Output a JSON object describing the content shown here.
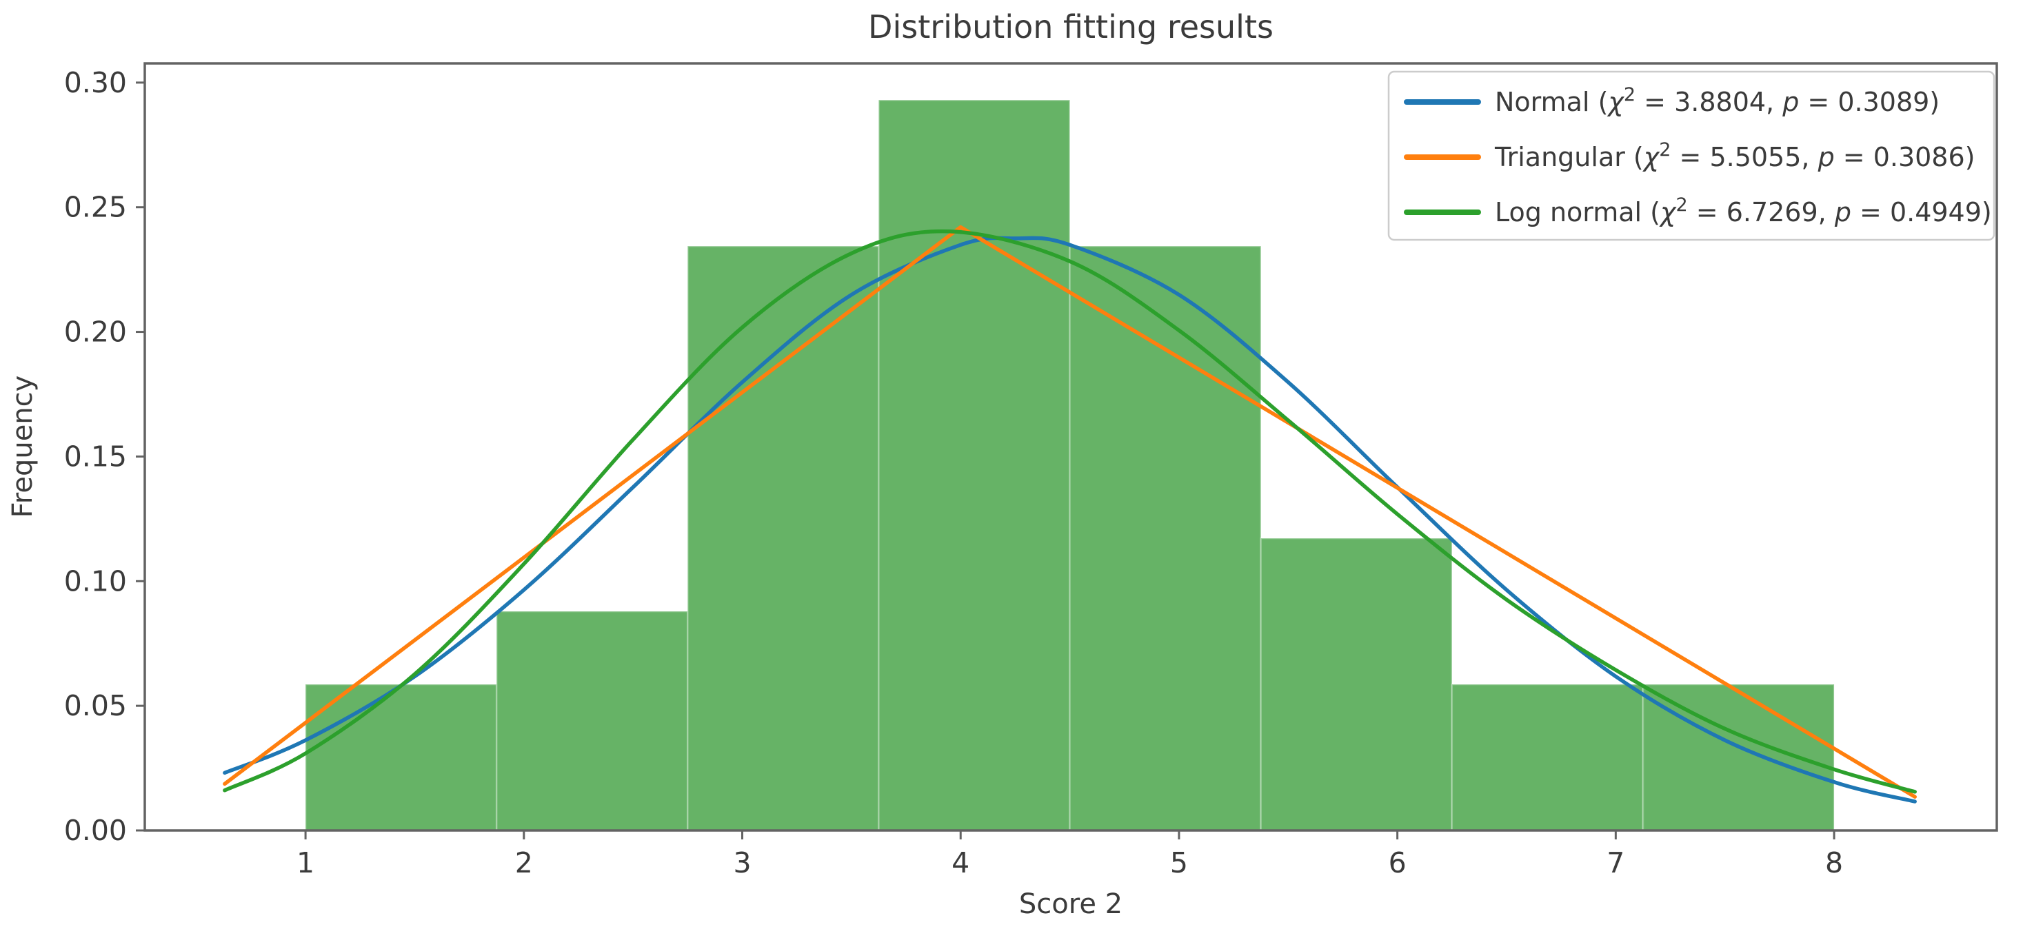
{
  "figure": {
    "background": "#ffffff",
    "text_color": "#3b3b3b",
    "spine_color": "#636363"
  },
  "chart_data": {
    "type": "histogram_with_fit_lines",
    "title": "Distribution fitting results",
    "xlabel": "Score 2",
    "ylabel": "Frequency",
    "xlim": [
      0.264,
      8.745
    ],
    "ylim": [
      0,
      0.3077
    ],
    "grid": false,
    "x_tick_values": [
      1,
      2,
      3,
      4,
      5,
      6,
      7,
      8
    ],
    "x_tick_labels": [
      "1",
      "2",
      "3",
      "4",
      "5",
      "6",
      "7",
      "8"
    ],
    "y_tick_values": [
      0,
      0.05,
      0.1,
      0.15,
      0.2,
      0.25,
      0.3
    ],
    "y_tick_labels": [
      "0.00",
      "0.05",
      "0.10",
      "0.15",
      "0.20",
      "0.25",
      "0.30"
    ],
    "histogram": {
      "fill_color": "#008000",
      "fill_alpha": 0.6,
      "bin_edges": [
        1,
        1.875,
        2.75,
        3.625,
        4.5,
        5.375,
        6.25,
        7.125,
        8
      ],
      "densities": [
        0.0586,
        0.0879,
        0.2344,
        0.293,
        0.2344,
        0.1172,
        0.0586,
        0.0586
      ]
    },
    "series": [
      {
        "name": "Normal",
        "chi2": "3.8804",
        "p": "0.3089",
        "color": "#1f77b4",
        "smooth": true,
        "points": [
          [
            0.63,
            0.0231
          ],
          [
            1,
            0.0362
          ],
          [
            1.5,
            0.0618
          ],
          [
            2,
            0.0965
          ],
          [
            2.5,
            0.1377
          ],
          [
            3,
            0.1798
          ],
          [
            3.5,
            0.2149
          ],
          [
            4,
            0.2349
          ],
          [
            4.25,
            0.2375
          ],
          [
            4.5,
            0.2349
          ],
          [
            5,
            0.2149
          ],
          [
            5.5,
            0.1798
          ],
          [
            6,
            0.1377
          ],
          [
            6.5,
            0.0965
          ],
          [
            7,
            0.0618
          ],
          [
            7.5,
            0.0362
          ],
          [
            8,
            0.0194
          ],
          [
            8.37,
            0.0116
          ]
        ]
      },
      {
        "name": "Triangular",
        "chi2": "5.5055",
        "p": "0.3086",
        "color": "#ff7f0e",
        "smooth": false,
        "points": [
          [
            0.63,
            0.0187
          ],
          [
            4,
            0.242
          ],
          [
            8.37,
            0.0135
          ]
        ]
      },
      {
        "name": "Log normal",
        "chi2": "6.7269",
        "p": "0.4949",
        "color": "#2ca02c",
        "smooth": true,
        "points": [
          [
            0.63,
            0.0161
          ],
          [
            1,
            0.0309
          ],
          [
            1.5,
            0.0627
          ],
          [
            2,
            0.1069
          ],
          [
            2.5,
            0.1568
          ],
          [
            3,
            0.2018
          ],
          [
            3.5,
            0.2315
          ],
          [
            3.95,
            0.2403
          ],
          [
            4.5,
            0.2283
          ],
          [
            5,
            0.2006
          ],
          [
            5.5,
            0.1645
          ],
          [
            6,
            0.1269
          ],
          [
            6.5,
            0.0926
          ],
          [
            7,
            0.0644
          ],
          [
            7.5,
            0.0408
          ],
          [
            8,
            0.0245
          ],
          [
            8.37,
            0.0155
          ]
        ]
      }
    ],
    "legend": {
      "position": "upper right",
      "label_format": "{name} (χ² = {chi2}, p = {p})"
    }
  }
}
